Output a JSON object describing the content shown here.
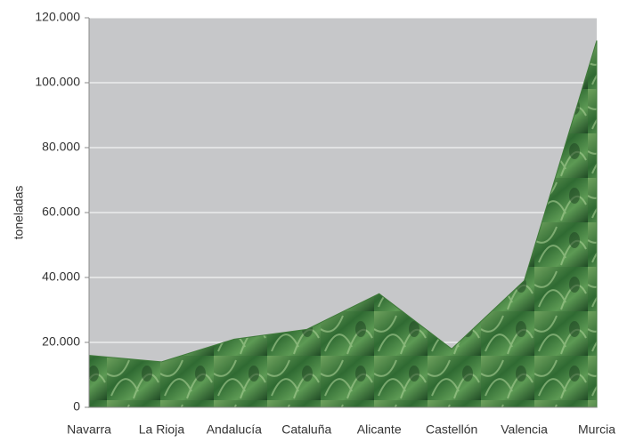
{
  "chart_data": {
    "type": "area",
    "y_label": "toneladas",
    "categories": [
      "Navarra",
      "La Rioja",
      "Andalucía",
      "Cataluña",
      "Alicante",
      "Castellón",
      "Valencia",
      "Murcia"
    ],
    "values": [
      16000,
      14000,
      21000,
      24000,
      35000,
      18000,
      39000,
      113000
    ],
    "color": "#3f7a3a",
    "background": "#c6c7c9",
    "ylim": [
      0,
      120000
    ],
    "yticks": [
      0,
      {
        "value": 20000,
        "label": "20.000"
      },
      {
        "value": 40000,
        "label": "40.000"
      },
      {
        "value": 60000,
        "label": "60.000"
      },
      {
        "value": 80000,
        "label": "80.000"
      },
      {
        "value": 100000,
        "label": "100.000"
      },
      {
        "value": 120000,
        "label": "120.000"
      }
    ],
    "grid": true
  }
}
